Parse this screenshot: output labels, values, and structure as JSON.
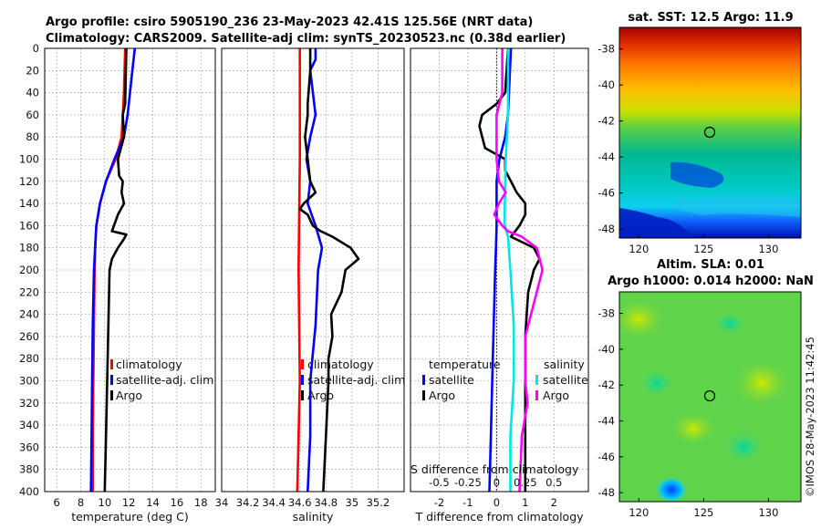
{
  "header": {
    "title_line1": "Argo profile: csiro 5905190_236 23-May-2023 42.41S 125.56E (NRT data)",
    "title_line2": "Climatology: CARS2009. Satellite-adj clim: synTS_20230523.nc (0.38d earlier)"
  },
  "footer": {
    "watermark": "©IMOS 28-May-2023 11:42:45"
  },
  "colors": {
    "argo": "#000000",
    "climatology": "#ff0000",
    "satellite": "#0000ff",
    "salinity_diff": "#ff00ff",
    "salinity_sat": "#00e6e6"
  },
  "chart_data": [
    {
      "id": "temperature",
      "type": "line",
      "xlabel": "temperature (deg C)",
      "ylabel": "",
      "xlim": [
        5,
        19.2
      ],
      "ylim": [
        400,
        0
      ],
      "xticks": [
        "6",
        "8",
        "10",
        "12",
        "14",
        "16",
        "18"
      ],
      "yticks": [
        "0",
        "20",
        "40",
        "60",
        "80",
        "100",
        "120",
        "140",
        "160",
        "180",
        "200",
        "220",
        "240",
        "260",
        "280",
        "300",
        "320",
        "340",
        "360",
        "380",
        "400"
      ],
      "legend": [
        "climatology",
        "satellite-adj. clim",
        "Argo"
      ],
      "series": [
        {
          "name": "climatology",
          "depth": [
            0,
            40,
            80,
            100,
            120,
            140,
            160,
            180,
            200,
            250,
            300,
            350,
            400
          ],
          "values": [
            11.7,
            11.6,
            11.4,
            10.9,
            10.1,
            9.6,
            9.3,
            9.2,
            9.15,
            9.1,
            9.05,
            9.0,
            9.0
          ]
        },
        {
          "name": "satellite-adj. clim",
          "depth": [
            0,
            20,
            40,
            60,
            80,
            100,
            120,
            140,
            160,
            180,
            200,
            250,
            300,
            350,
            400
          ],
          "values": [
            12.5,
            12.3,
            12.1,
            11.9,
            11.6,
            10.8,
            10.1,
            9.6,
            9.3,
            9.2,
            9.1,
            9.0,
            8.95,
            8.9,
            8.85
          ]
        },
        {
          "name": "Argo",
          "depth": [
            0,
            50,
            60,
            80,
            100,
            115,
            120,
            130,
            140,
            150,
            165,
            168,
            172,
            180,
            190,
            200,
            250,
            300,
            350,
            400
          ],
          "values": [
            11.8,
            11.7,
            11.5,
            11.6,
            11.1,
            11.2,
            11.5,
            11.4,
            11.6,
            11.1,
            10.6,
            11.8,
            11.6,
            11.1,
            10.6,
            10.4,
            10.3,
            10.2,
            10.1,
            10.0
          ]
        }
      ]
    },
    {
      "id": "salinity",
      "type": "line",
      "xlabel": "salinity",
      "ylabel": "",
      "xlim": [
        34,
        35.4
      ],
      "ylim": [
        400,
        0
      ],
      "xticks": [
        "34",
        "34.2",
        "34.4",
        "34.6",
        "34.8",
        "35",
        "35.2"
      ],
      "legend": [
        "climatology",
        "satellite-adj. clim",
        "Argo"
      ],
      "series": [
        {
          "name": "climatology",
          "depth": [
            0,
            100,
            200,
            300,
            400
          ],
          "values": [
            34.6,
            34.6,
            34.59,
            34.6,
            34.58
          ]
        },
        {
          "name": "satellite-adj. clim",
          "depth": [
            0,
            10,
            20,
            60,
            80,
            100,
            120,
            140,
            160,
            180,
            200,
            250,
            300,
            350,
            400
          ],
          "values": [
            34.72,
            34.72,
            34.68,
            34.72,
            34.68,
            34.65,
            34.68,
            34.66,
            34.72,
            34.77,
            34.74,
            34.72,
            34.68,
            34.68,
            34.66
          ]
        },
        {
          "name": "Argo",
          "depth": [
            0,
            20,
            50,
            60,
            80,
            100,
            120,
            130,
            140,
            145,
            150,
            155,
            160,
            165,
            170,
            180,
            190,
            200,
            220,
            240,
            260,
            280,
            300,
            350,
            400
          ],
          "values": [
            34.68,
            34.68,
            34.66,
            34.66,
            34.64,
            34.66,
            34.68,
            34.72,
            34.63,
            34.6,
            34.66,
            34.68,
            34.7,
            34.76,
            34.85,
            34.99,
            35.05,
            34.95,
            34.92,
            34.84,
            34.85,
            34.82,
            34.82,
            34.8,
            34.78
          ]
        }
      ]
    },
    {
      "id": "differences",
      "type": "line",
      "xlabel": "T difference from climatology",
      "ylabel": "",
      "top_xlabel": "S difference from climatology",
      "xlim": [
        -3,
        3.2
      ],
      "ylim": [
        400,
        0
      ],
      "xticks": [
        "-2",
        "-1",
        "0",
        "1",
        "2"
      ],
      "top_xticks": [
        "-0.5",
        "-0.25",
        "0",
        "0.25",
        "0.5"
      ],
      "legend_temperature": {
        "title": "temperature",
        "items": [
          "satellite",
          "Argo"
        ]
      },
      "legend_salinity": {
        "title": "salinity",
        "items": [
          "satellite",
          "Argo"
        ]
      },
      "series": [
        {
          "name": "T satellite",
          "depth": [
            0,
            60,
            80,
            100,
            120,
            140,
            160,
            180,
            200,
            250,
            300,
            350,
            400
          ],
          "values": [
            0.5,
            0.4,
            0.3,
            0.1,
            0.0,
            0.0,
            0.0,
            -0.02,
            -0.05,
            -0.1,
            -0.15,
            -0.2,
            -0.25
          ]
        },
        {
          "name": "T Argo",
          "depth": [
            0,
            40,
            50,
            60,
            70,
            80,
            90,
            100,
            110,
            120,
            130,
            140,
            150,
            160,
            170,
            180,
            190,
            200,
            220,
            260,
            300,
            350,
            400
          ],
          "values": [
            0.4,
            0.3,
            0.0,
            -0.5,
            -0.6,
            -0.5,
            -0.4,
            0.3,
            0.3,
            0.5,
            0.7,
            1.0,
            1.0,
            0.8,
            0.5,
            1.3,
            1.5,
            1.3,
            1.1,
            1.0,
            1.0,
            1.0,
            1.0
          ]
        },
        {
          "name": "S satellite",
          "depth": [
            0,
            60,
            100,
            150,
            160,
            170,
            200,
            250,
            300,
            350,
            400
          ],
          "values": [
            0.1,
            0.1,
            0.08,
            0.07,
            0.07,
            0.1,
            0.12,
            0.15,
            0.15,
            0.12,
            0.12
          ]
        },
        {
          "name": "S Argo",
          "depth": [
            0,
            40,
            60,
            80,
            100,
            120,
            130,
            140,
            150,
            160,
            165,
            170,
            180,
            200,
            220,
            260,
            300,
            320,
            350,
            400
          ],
          "values": [
            0.05,
            0.05,
            0.0,
            0.0,
            0.0,
            0.02,
            0.08,
            0.02,
            -0.02,
            0.05,
            0.1,
            0.22,
            0.35,
            0.4,
            0.35,
            0.25,
            0.25,
            0.27,
            0.22,
            0.2
          ]
        }
      ]
    },
    {
      "id": "sst_map",
      "type": "heatmap",
      "title": "sat. SST: 12.5 Argo: 11.9",
      "xlim": [
        118.5,
        132.5
      ],
      "ylim": [
        -48.5,
        -36.8
      ],
      "xticks": [
        "120",
        "125",
        "130"
      ],
      "yticks": [
        "-38",
        "-40",
        "-42",
        "-44",
        "-46",
        "-48"
      ],
      "marker": {
        "lon": 125.56,
        "lat": -42.41
      }
    },
    {
      "id": "sla_map",
      "type": "heatmap",
      "title_line1": "Altim. SLA: 0.01",
      "title_line2": "Argo h1000: 0.014 h2000: NaN",
      "xlim": [
        118.5,
        132.5
      ],
      "ylim": [
        -48.5,
        -36.8
      ],
      "xticks": [
        "120",
        "125",
        "130"
      ],
      "yticks": [
        "-38",
        "-40",
        "-42",
        "-44",
        "-46",
        "-48"
      ],
      "marker": {
        "lon": 125.56,
        "lat": -42.41
      }
    }
  ]
}
